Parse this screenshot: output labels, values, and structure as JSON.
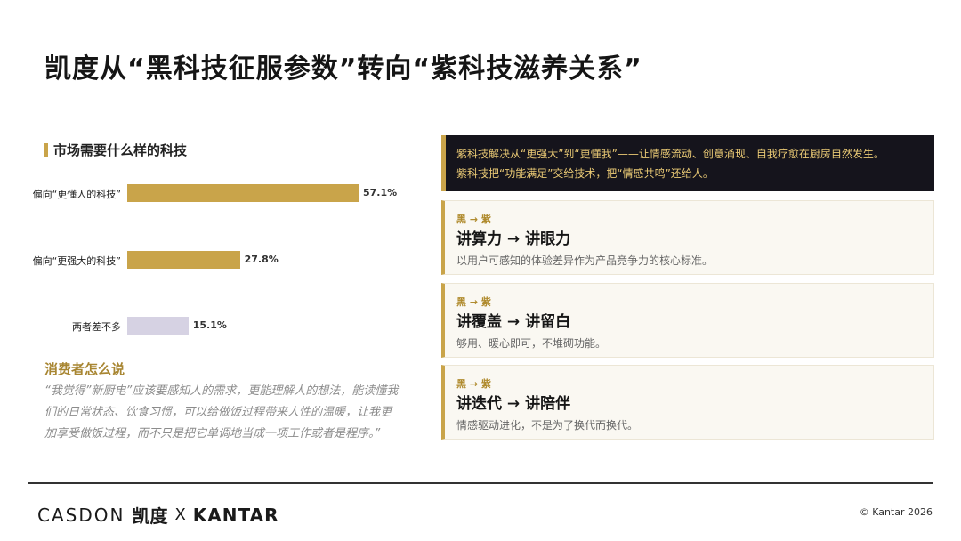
{
  "title": "凯度从“黑科技征服参数”转向“紫科技滋养关系”",
  "left": {
    "heading": "市场需要什么样的科技",
    "consumer_title": "消费者怎么说",
    "consumer_quote": "“我觉得”新厨电”应该要感知人的需求，更能理解人的想法，能读懂我们的日常状态、饮食习惯，可以给做饭过程带来人性的温暖，让我更加享受做饭过程，而不只是把它单调地当成一项工作或者是程序。”"
  },
  "chart_data": {
    "type": "bar",
    "orientation": "horizontal",
    "categories": [
      "偏向“更懂人的科技”",
      "偏向“更强大的科技”",
      "两者差不多"
    ],
    "values": [
      57.1,
      27.8,
      15.1
    ],
    "value_labels": [
      "57.1%",
      "27.8%",
      "15.1%"
    ],
    "colors": [
      "#c9a44a",
      "#c9a44a",
      "#d6d2e3"
    ],
    "xlim": [
      0,
      60
    ],
    "grid": false
  },
  "right": {
    "dark_box": {
      "line1": "紫科技解决从“更强大”到“更懂我”——让情感流动、创意涌现、自我疗愈在厨房自然发生。",
      "line2": "紫科技把“功能满足”交给技术，把“情感共鸣”还给人。"
    },
    "cards": [
      {
        "tag": "黑 → 紫",
        "main": "讲算力 → 讲眼力",
        "sub": "以用户可感知的体验差异作为产品竞争力的核心标准。"
      },
      {
        "tag": "黑 → 紫",
        "main": "讲覆盖 → 讲留白",
        "sub": "够用、暖心即可，不堆砌功能。"
      },
      {
        "tag": "黑 → 紫",
        "main": "讲迭代 → 讲陪伴",
        "sub": "情感驱动进化，不是为了换代而换代。"
      }
    ]
  },
  "footer": {
    "logo_casdon": "CASDON",
    "logo_cn": "凯度",
    "logo_x": "X",
    "logo_kantar": "KANTAR",
    "copyright": "© Kantar 2026"
  }
}
